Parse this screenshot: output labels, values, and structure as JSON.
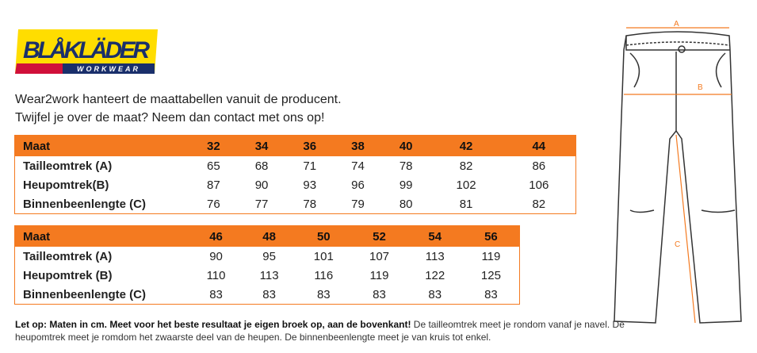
{
  "logo": {
    "brand": "BLÅKLÄDER",
    "sub": "WORKWEAR"
  },
  "intro": {
    "line1": "Wear2work hanteert de maattabellen vanuit de producent.",
    "line2": "Twijfel je over de maat? Neem dan contact met ons op!"
  },
  "tables": [
    {
      "header": "Maat",
      "sizes": [
        "32",
        "34",
        "36",
        "38",
        "40",
        "42",
        "44"
      ],
      "rows": [
        {
          "label": "Tailleomtrek (A)",
          "values": [
            "65",
            "68",
            "71",
            "74",
            "78",
            "82",
            "86"
          ]
        },
        {
          "label": "Heupomtrek(B)",
          "values": [
            "87",
            "90",
            "93",
            "96",
            "99",
            "102",
            "106"
          ]
        },
        {
          "label": "Binnenbeenlengte (C)",
          "values": [
            "76",
            "77",
            "78",
            "79",
            "80",
            "81",
            "82"
          ]
        }
      ]
    },
    {
      "header": "Maat",
      "sizes": [
        "46",
        "48",
        "50",
        "52",
        "54",
        "56"
      ],
      "rows": [
        {
          "label": "Tailleomtrek (A)",
          "values": [
            "90",
            "95",
            "101",
            "107",
            "113",
            "119"
          ]
        },
        {
          "label": "Heupomtrek (B)",
          "values": [
            "110",
            "113",
            "116",
            "119",
            "122",
            "125"
          ]
        },
        {
          "label": "Binnenbeenlengte (C)",
          "values": [
            "83",
            "83",
            "83",
            "83",
            "83",
            "83"
          ]
        }
      ]
    }
  ],
  "note": {
    "bold": "Let op: Maten in cm. Meet voor het beste resultaat je eigen broek op, aan de bovenkant!",
    "text": " De tailleomtrek meet je rondom vanaf je navel. De heupomtrek meet je romdom het zwaarste deel van de heupen. De binnenbeenlengte meet je van kruis tot enkel."
  },
  "diagram": {
    "a": "A",
    "b": "B",
    "c": "C"
  },
  "colors": {
    "accent": "#f47a20",
    "logo_yellow": "#ffdd00",
    "logo_blue": "#1a2f6b",
    "logo_red": "#d0103a"
  }
}
